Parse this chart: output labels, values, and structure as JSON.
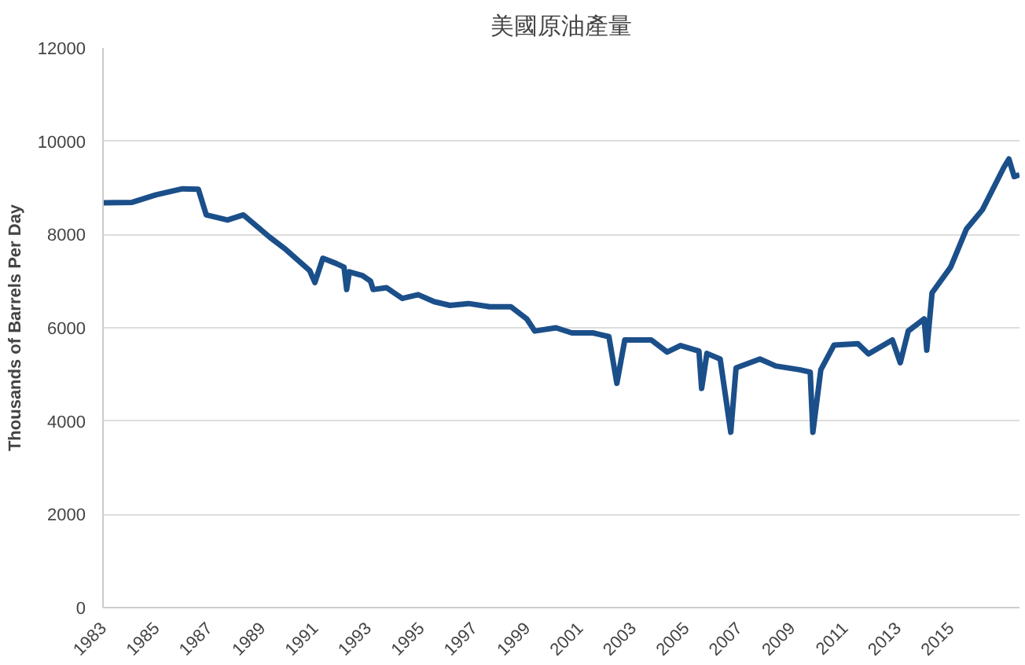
{
  "chart_data": {
    "type": "line",
    "title": "美國原油產量",
    "ylabel": "Thousands of Barrels Per Day",
    "x": [
      1983.0,
      1984.1,
      1985.0,
      1986.0,
      1986.6,
      1986.9,
      1987.7,
      1988.3,
      1989.3,
      1989.9,
      1990.8,
      1991.0,
      1991.3,
      1991.8,
      1992.1,
      1992.2,
      1992.3,
      1992.8,
      1993.1,
      1993.2,
      1993.7,
      1994.3,
      1994.9,
      1995.5,
      1996.1,
      1996.8,
      1997.6,
      1998.4,
      1999.0,
      1999.3,
      2000.1,
      2000.7,
      2001.5,
      2002.1,
      2002.4,
      2002.7,
      2003.7,
      2004.3,
      2004.8,
      2005.5,
      2005.6,
      2005.8,
      2006.3,
      2006.7,
      2006.9,
      2007.8,
      2008.4,
      2009.3,
      2009.7,
      2009.8,
      2010.1,
      2010.6,
      2011.5,
      2011.9,
      2012.8,
      2013.1,
      2013.4,
      2014.0,
      2014.1,
      2014.3,
      2015.0,
      2015.6,
      2016.2,
      2017.0,
      2017.2,
      2017.4,
      2017.6
    ],
    "series": [
      {
        "color": "#1b4f8a",
        "values": [
          8680,
          8690,
          8850,
          8980,
          8970,
          8420,
          8310,
          8420,
          7940,
          7680,
          7230,
          6970,
          7490,
          7380,
          7300,
          6820,
          7200,
          7120,
          7000,
          6820,
          6860,
          6630,
          6710,
          6560,
          6480,
          6520,
          6450,
          6450,
          6190,
          5930,
          6000,
          5890,
          5890,
          5810,
          4810,
          5740,
          5740,
          5480,
          5620,
          5500,
          4700,
          5450,
          5330,
          3760,
          5140,
          5330,
          5180,
          5100,
          5050,
          3760,
          5100,
          5630,
          5660,
          5440,
          5740,
          5250,
          5930,
          6190,
          5520,
          6750,
          7300,
          8120,
          8530,
          9430,
          9620,
          9240,
          9280
        ]
      }
    ],
    "xlim": [
      1983,
      2017.6
    ],
    "xticks": [
      1983,
      1985,
      1987,
      1989,
      1991,
      1993,
      1995,
      1997,
      1999,
      2001,
      2003,
      2005,
      2007,
      2009,
      2011,
      2013,
      2015
    ],
    "ylim": [
      0,
      12000
    ],
    "yticks": [
      0,
      2000,
      4000,
      6000,
      8000,
      10000,
      12000
    ],
    "grid": "y",
    "line_style": "solid"
  }
}
